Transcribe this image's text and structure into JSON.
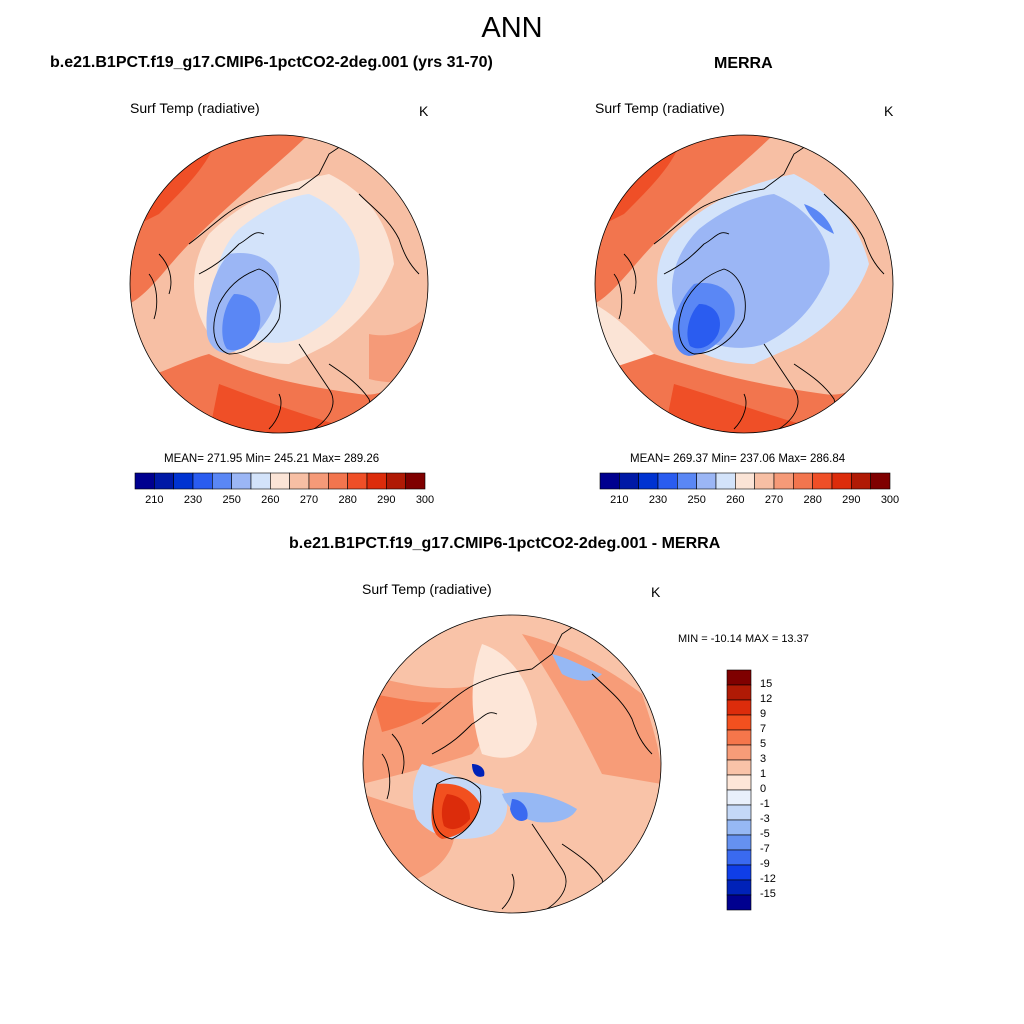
{
  "main_title": "ANN",
  "panels": [
    {
      "title": "b.e21.B1PCT.f19_g17.CMIP6-1pctCO2-2deg.001 (yrs 31-70)",
      "variable": "Surf Temp (radiative)",
      "units": "K",
      "stats": "MEAN= 271.95  Min= 245.21  Max= 289.26"
    },
    {
      "title": "MERRA",
      "variable": "Surf Temp (radiative)",
      "units": "K",
      "stats": "MEAN= 269.37  Min= 237.06  Max= 286.84"
    }
  ],
  "abs_colorbar": {
    "colors": [
      "#00008f",
      "#0019a6",
      "#0033d1",
      "#2a5cf0",
      "#5a87f5",
      "#9bb6f5",
      "#d3e3fa",
      "#fbe4d6",
      "#f7bfa4",
      "#f59a78",
      "#f2754e",
      "#ef4f27",
      "#dc2c0b",
      "#b01a05",
      "#7f0000"
    ],
    "tick_labels": [
      "210",
      "230",
      "250",
      "260",
      "270",
      "280",
      "290",
      "300"
    ]
  },
  "diff_panel": {
    "title": "b.e21.B1PCT.f19_g17.CMIP6-1pctCO2-2deg.001 - MERRA",
    "variable": "Surf Temp (radiative)",
    "units": "K",
    "minmax": "MIN = -10.14 MAX =  13.37",
    "colorbar": {
      "colors": [
        "#7f0000",
        "#b01a05",
        "#dc2c0b",
        "#f2501f",
        "#f5764b",
        "#f79c78",
        "#f9c3a8",
        "#fde6d8",
        "#e9f0fb",
        "#c4d8f7",
        "#96b8f4",
        "#6591f1",
        "#3a6af0",
        "#0f3ee8",
        "#0022b8",
        "#00008f"
      ],
      "tick_labels": [
        "15",
        "12",
        "9",
        "7",
        "5",
        "3",
        "1",
        "0",
        "-1",
        "-3",
        "-5",
        "-7",
        "-9",
        "-12",
        "-15"
      ]
    }
  }
}
